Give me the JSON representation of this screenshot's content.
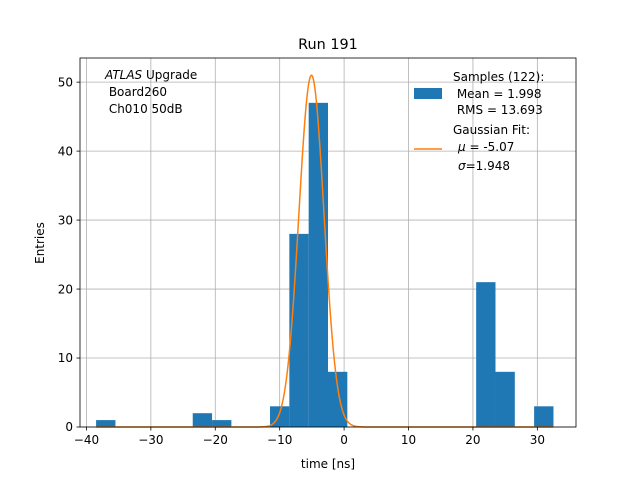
{
  "chart_data": {
    "type": "bar",
    "title": "Run 191",
    "xlabel": "time [ns]",
    "ylabel": "Entries",
    "xlim": [
      -41,
      36
    ],
    "ylim": [
      0,
      53.5
    ],
    "xticks": [
      -40,
      -30,
      -20,
      -10,
      0,
      10,
      20,
      30
    ],
    "xtick_labels": [
      "−40",
      "−30",
      "−20",
      "−10",
      "0",
      "10",
      "20",
      "30"
    ],
    "yticks": [
      0,
      10,
      20,
      30,
      40,
      50
    ],
    "ytick_labels": [
      "0",
      "10",
      "20",
      "30",
      "40",
      "50"
    ],
    "grid": true,
    "histogram": {
      "name": "Samples (122):",
      "color": "#1f77b4",
      "bins": [
        {
          "x0": -38.5,
          "x1": -35.5,
          "count": 1
        },
        {
          "x0": -23.5,
          "x1": -20.5,
          "count": 2
        },
        {
          "x0": -20.5,
          "x1": -17.5,
          "count": 1
        },
        {
          "x0": -11.5,
          "x1": -8.5,
          "count": 3
        },
        {
          "x0": -8.5,
          "x1": -5.5,
          "count": 28
        },
        {
          "x0": -5.5,
          "x1": -2.5,
          "count": 47
        },
        {
          "x0": -2.5,
          "x1": 0.5,
          "count": 8
        },
        {
          "x0": 20.5,
          "x1": 23.5,
          "count": 21
        },
        {
          "x0": 23.5,
          "x1": 26.5,
          "count": 8
        },
        {
          "x0": 29.5,
          "x1": 32.5,
          "count": 3
        }
      ]
    },
    "fit": {
      "name": "Gaussian Fit:",
      "color": "#ff7f0e",
      "mu": -5.07,
      "sigma": 1.948,
      "amplitude": 51
    },
    "annotation": {
      "italic": "ATLAS",
      "rest": " Upgrade",
      "line2": " Board260",
      "line3": " Ch010 50dB"
    },
    "legend": {
      "position": "top-right",
      "samples_title": "Samples (122):",
      "samples_mean": " Mean = 1.998",
      "samples_rms": " RMS = 13.693",
      "fit_title": "Gaussian Fit:",
      "fit_mu_sym": "μ",
      "fit_mu_val": " = -5.07",
      "fit_sigma_sym": "σ",
      "fit_sigma_val": "=1.948"
    }
  }
}
